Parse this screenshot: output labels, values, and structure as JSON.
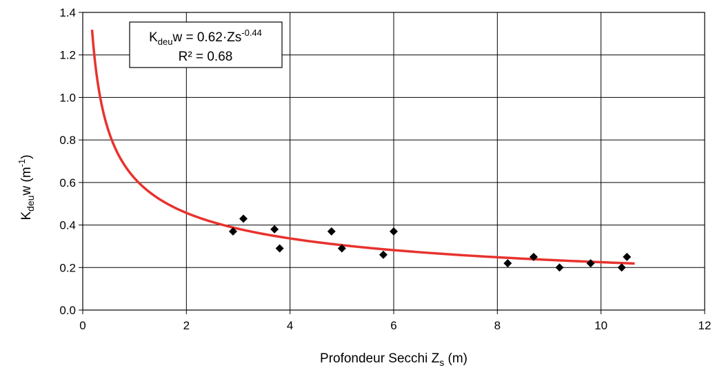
{
  "chart_data": {
    "type": "scatter",
    "xlim": [
      0,
      12
    ],
    "ylim": [
      0,
      1.4
    ],
    "x_ticks": [
      "0",
      "2",
      "4",
      "6",
      "8",
      "10",
      "12"
    ],
    "y_ticks": [
      "0.0",
      "0.2",
      "0.4",
      "0.6",
      "0.8",
      "1.0",
      "1.2",
      "1.4"
    ],
    "grid": true,
    "xlabel": {
      "main": "Profondeur Secchi Z",
      "sub": "s",
      "unit": " (m)"
    },
    "ylabel": {
      "main": "K",
      "sub": "deu",
      "after": "w  (m",
      "sup": "-1",
      "end": ")"
    },
    "annotation": {
      "line1": {
        "a": "K",
        "sub": "deu",
        "b": "w = 0.62·Zs",
        "sup": "-0.44"
      },
      "line2": "R² = 0.68"
    },
    "colors": {
      "fit": "#e8322d",
      "points": "#000000",
      "grid": "#000000"
    },
    "marker": "diamond",
    "series": [
      {
        "type": "scatter",
        "points": [
          [
            2.9,
            0.37
          ],
          [
            3.1,
            0.43
          ],
          [
            3.7,
            0.38
          ],
          [
            3.8,
            0.29
          ],
          [
            4.8,
            0.37
          ],
          [
            5.0,
            0.29
          ],
          [
            5.8,
            0.26
          ],
          [
            6.0,
            0.37
          ],
          [
            8.2,
            0.22
          ],
          [
            8.7,
            0.25
          ],
          [
            9.2,
            0.2
          ],
          [
            9.8,
            0.22
          ],
          [
            10.4,
            0.2
          ],
          [
            10.5,
            0.25
          ]
        ]
      },
      {
        "type": "fit",
        "coef": 0.62,
        "exponent": -0.44,
        "x_range": [
          0.18,
          10.65
        ]
      }
    ]
  }
}
